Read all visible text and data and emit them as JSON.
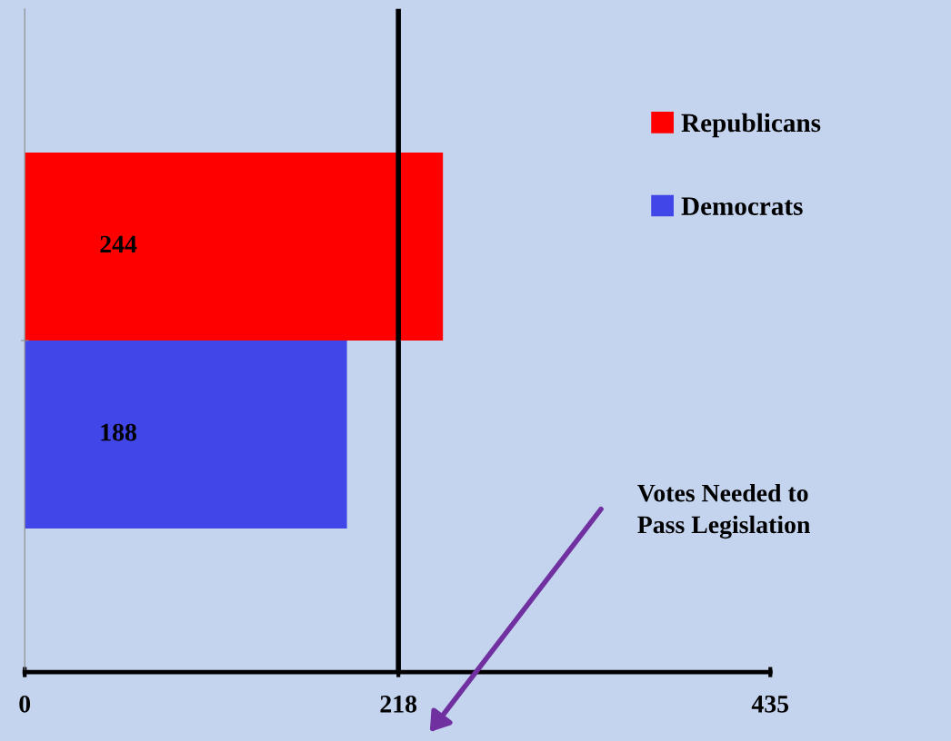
{
  "chart_data": {
    "type": "bar",
    "orientation": "horizontal",
    "categories": [
      null
    ],
    "series": [
      {
        "name": "Republicans",
        "color": "#ff0000",
        "values": [
          244
        ]
      },
      {
        "name": "Democrats",
        "color": "#4046e8",
        "values": [
          188
        ]
      }
    ],
    "xlim": [
      0,
      435
    ],
    "xticks": [
      0,
      218,
      435
    ],
    "ref_lines": [
      {
        "axis": "x",
        "value": 218,
        "color": "#000000"
      }
    ],
    "annotations": [
      "Votes Needed to\nPass Legislation"
    ],
    "data_labels": true,
    "legend": "top right",
    "grid": false
  }
}
